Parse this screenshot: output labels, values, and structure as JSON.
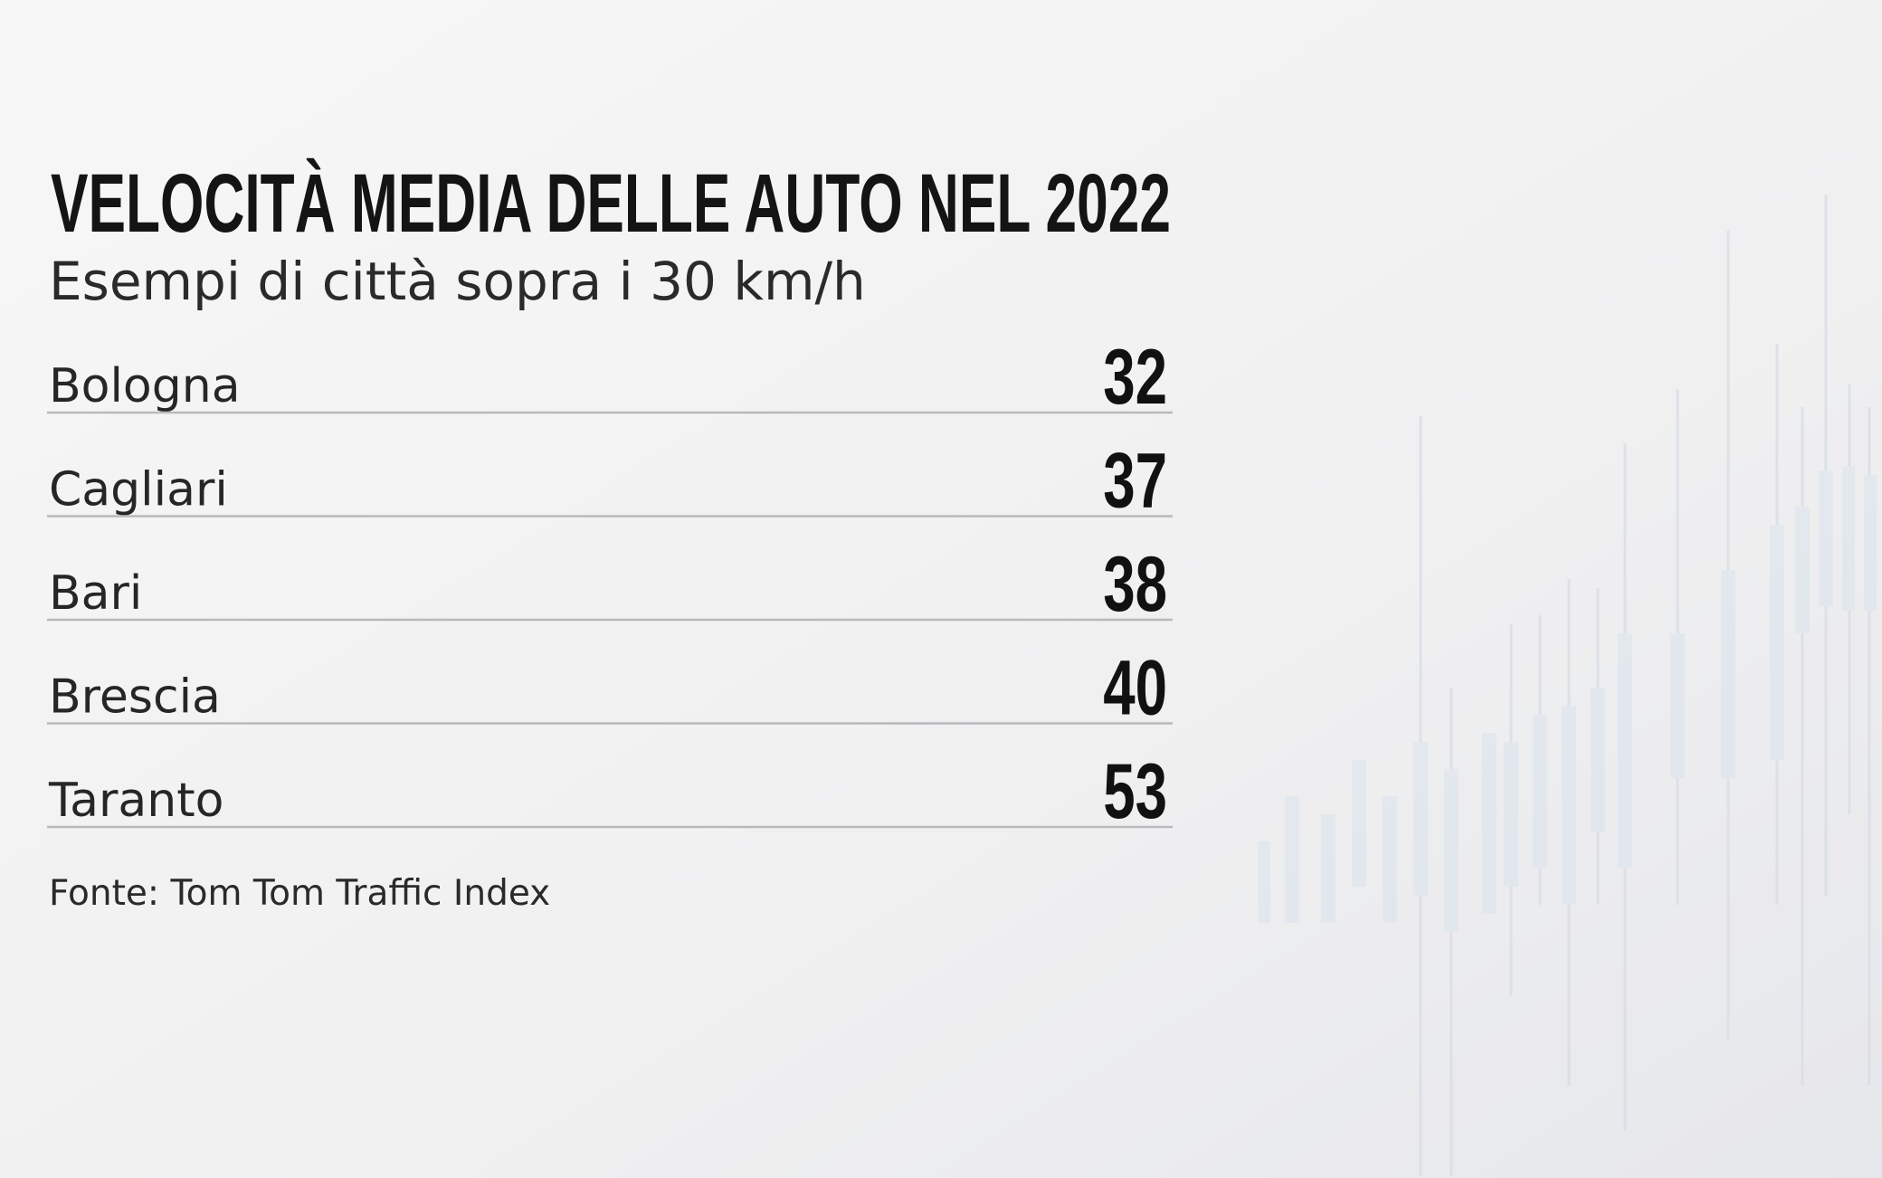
{
  "header": {
    "title": "VELOCITÀ MEDIA DELLE AUTO NEL 2022",
    "subtitle": "Esempi di città sopra i 30 km/h"
  },
  "table": {
    "rows": [
      [
        "Bologna",
        32
      ],
      [
        "Cagliari",
        37
      ],
      [
        "Bari",
        38
      ],
      [
        "Brescia",
        40
      ],
      [
        "Taranto",
        53
      ]
    ]
  },
  "footer": {
    "source": "Fonte: Tom Tom Traffic Index"
  }
}
